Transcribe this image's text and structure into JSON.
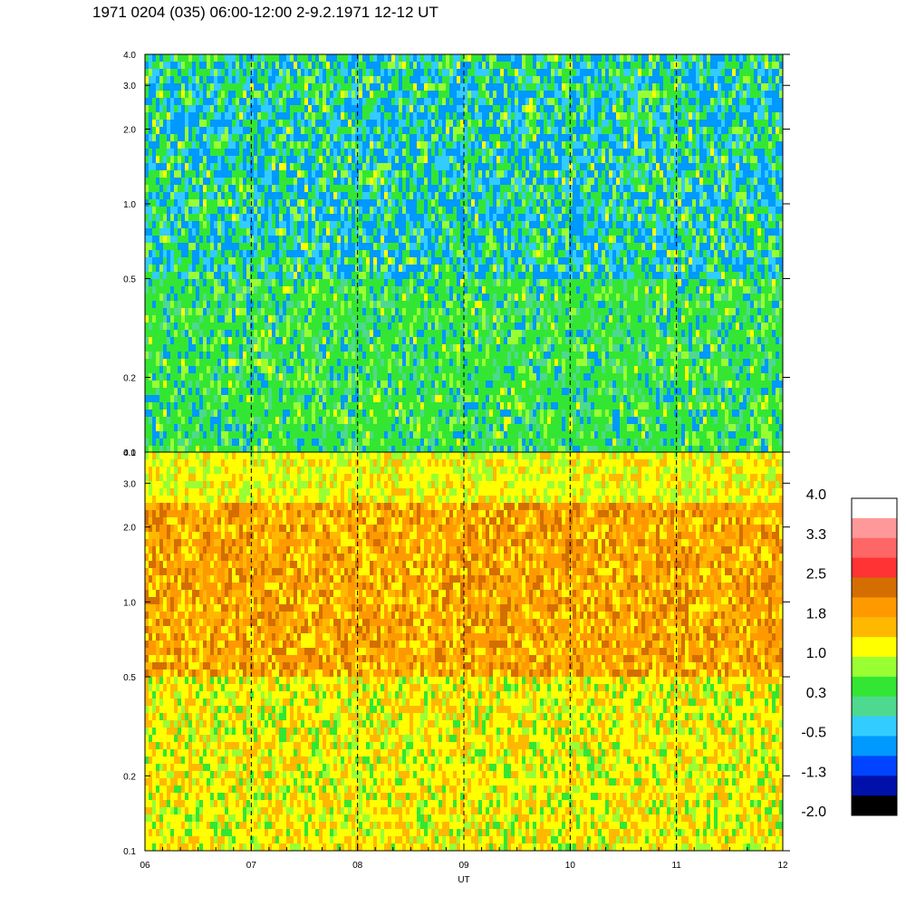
{
  "title": "1971 0204 (035) 06:00-12:00 2-9.2.1971  12-12 UT",
  "chart_data": [
    {
      "type": "heatmap",
      "panel": "upper",
      "x_ticks": [
        "06",
        "07",
        "08",
        "09",
        "10",
        "11",
        "12"
      ],
      "x_range": [
        6,
        12
      ],
      "y_ticks": [
        "4.0",
        "3.0",
        "2.0",
        "1.0",
        "0.5",
        "0.2",
        "0.1"
      ],
      "y_tick_values": [
        4.0,
        3.0,
        2.0,
        1.0,
        0.5,
        0.2,
        0.1
      ],
      "y_range": [
        0.1,
        4.0
      ],
      "y_scale": "log",
      "hour_markers": [
        7,
        8,
        9,
        10,
        11
      ],
      "dominant_levels": [
        "green",
        "cyan",
        "blue",
        "yellow-green"
      ]
    },
    {
      "type": "heatmap",
      "panel": "lower",
      "x_ticks": [
        "06",
        "07",
        "08",
        "09",
        "10",
        "11",
        "12"
      ],
      "x_range": [
        6,
        12
      ],
      "xlabel": "UT",
      "y_ticks": [
        "4.0",
        "3.0",
        "2.0",
        "1.0",
        "0.5",
        "0.2",
        "0.1"
      ],
      "y_tick_values": [
        4.0,
        3.0,
        2.0,
        1.0,
        0.5,
        0.2,
        0.1
      ],
      "y_range": [
        0.1,
        4.0
      ],
      "y_scale": "log",
      "hour_markers": [
        7,
        8,
        9,
        10,
        11
      ],
      "dominant_levels": [
        "yellow",
        "orange",
        "dark-orange",
        "green"
      ]
    }
  ],
  "colorbar": {
    "labels": [
      "4.0",
      "3.3",
      "2.5",
      "1.8",
      "1.0",
      "0.3",
      "-0.5",
      "-1.3",
      "-2.0"
    ],
    "colors": [
      "#ffffff",
      "#ff9999",
      "#ff6666",
      "#ff3333",
      "#d46e00",
      "#ff9900",
      "#ffb800",
      "#ffff00",
      "#99ff33",
      "#33e633",
      "#4dd98f",
      "#33ccff",
      "#0099ff",
      "#0044ff",
      "#0011aa",
      "#000000"
    ]
  }
}
